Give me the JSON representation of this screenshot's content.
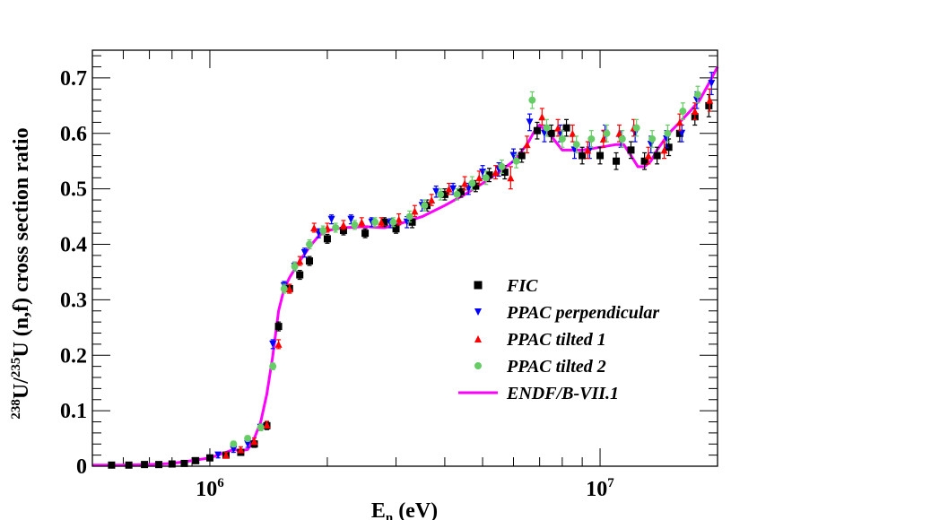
{
  "chart_data": {
    "type": "scatter",
    "title": "",
    "xlabel": "En (eV)",
    "xlabel_main": "E",
    "xlabel_sub": "n",
    "xlabel_rest": " (eV)",
    "ylabel": "238U/235U (n,f) cross section ratio",
    "ylabel_sup1": "238",
    "ylabel_mid": "U/",
    "ylabel_sup2": "235",
    "ylabel_rest": "U (n,f) cross section ratio",
    "xscale": "log",
    "xlim": [
      500000,
      20000000
    ],
    "ylim": [
      0,
      0.75
    ],
    "yticks": [
      {
        "value": 0,
        "label": "0"
      },
      {
        "value": 0.1,
        "label": "0.1"
      },
      {
        "value": 0.2,
        "label": "0.2"
      },
      {
        "value": 0.3,
        "label": "0.3"
      },
      {
        "value": 0.4,
        "label": "0.4"
      },
      {
        "value": 0.5,
        "label": "0.5"
      },
      {
        "value": 0.6,
        "label": "0.6"
      },
      {
        "value": 0.7,
        "label": "0.7"
      }
    ],
    "xticks": [
      {
        "value": 1000000,
        "base": "10",
        "exp": "6"
      },
      {
        "value": 10000000,
        "base": "10",
        "exp": "7"
      }
    ],
    "legend_position": "bottom-right",
    "series": [
      {
        "name": "FIC",
        "marker": "square",
        "color": "#000000",
        "x": [
          560000,
          620000,
          680000,
          740000,
          800000,
          860000,
          920000,
          1000000,
          1100000,
          1200000,
          1300000,
          1400000,
          1500000,
          1600000,
          1700000,
          1800000,
          2000000,
          2200000,
          2500000,
          2800000,
          3000000,
          3300000,
          3600000,
          4000000,
          4400000,
          4800000,
          5200000,
          5700000,
          6300000,
          6900000,
          7500000,
          8200000,
          9000000,
          10000000,
          11000000,
          12000000,
          13000000,
          14000000,
          15000000,
          16000000,
          17500000,
          19000000
        ],
        "y": [
          0.002,
          0.002,
          0.003,
          0.003,
          0.004,
          0.005,
          0.01,
          0.015,
          0.02,
          0.025,
          0.04,
          0.073,
          0.252,
          0.32,
          0.345,
          0.37,
          0.41,
          0.425,
          0.42,
          0.44,
          0.428,
          0.44,
          0.47,
          0.49,
          0.495,
          0.505,
          0.525,
          0.53,
          0.56,
          0.605,
          0.6,
          0.61,
          0.56,
          0.56,
          0.55,
          0.57,
          0.55,
          0.56,
          0.575,
          0.6,
          0.63,
          0.65
        ],
        "err": [
          0.003,
          0.003,
          0.003,
          0.003,
          0.003,
          0.003,
          0.004,
          0.004,
          0.005,
          0.005,
          0.006,
          0.007,
          0.008,
          0.008,
          0.008,
          0.008,
          0.008,
          0.008,
          0.008,
          0.008,
          0.008,
          0.01,
          0.01,
          0.01,
          0.01,
          0.01,
          0.012,
          0.012,
          0.012,
          0.015,
          0.015,
          0.015,
          0.015,
          0.015,
          0.015,
          0.015,
          0.015,
          0.015,
          0.015,
          0.015,
          0.015,
          0.02
        ]
      },
      {
        "name": "PPAC perpendicular",
        "marker": "triangle-down",
        "color": "#0000ff",
        "x": [
          1050000,
          1150000,
          1250000,
          1350000,
          1450000,
          1550000,
          1650000,
          1750000,
          1900000,
          2050000,
          2300000,
          2600000,
          2900000,
          3200000,
          3500000,
          3800000,
          4200000,
          4600000,
          5000000,
          5500000,
          6000000,
          6600000,
          7200000,
          7900000,
          8600000,
          9400000,
          10300000,
          11300000,
          12300000,
          13500000,
          14800000,
          16200000,
          17700000,
          19300000
        ],
        "y": [
          0.02,
          0.03,
          0.04,
          0.07,
          0.22,
          0.325,
          0.36,
          0.385,
          0.42,
          0.445,
          0.445,
          0.44,
          0.438,
          0.44,
          0.47,
          0.495,
          0.5,
          0.5,
          0.53,
          0.535,
          0.56,
          0.62,
          0.6,
          0.6,
          0.57,
          0.57,
          0.6,
          0.59,
          0.6,
          0.58,
          0.59,
          0.6,
          0.66,
          0.69
        ],
        "err": [
          0.005,
          0.005,
          0.006,
          0.006,
          0.008,
          0.008,
          0.008,
          0.008,
          0.008,
          0.008,
          0.008,
          0.008,
          0.008,
          0.01,
          0.01,
          0.01,
          0.01,
          0.01,
          0.012,
          0.012,
          0.012,
          0.015,
          0.015,
          0.015,
          0.015,
          0.015,
          0.015,
          0.015,
          0.015,
          0.015,
          0.015,
          0.015,
          0.015,
          0.02
        ]
      },
      {
        "name": "PPAC tilted 1",
        "marker": "triangle-up",
        "color": "#ff0000",
        "x": [
          1100000,
          1200000,
          1300000,
          1400000,
          1500000,
          1600000,
          1700000,
          1850000,
          2000000,
          2200000,
          2450000,
          2750000,
          3050000,
          3350000,
          3700000,
          4100000,
          4500000,
          4900000,
          5400000,
          5900000,
          6500000,
          7100000,
          7800000,
          8500000,
          9300000,
          10200000,
          11200000,
          12200000,
          13300000,
          14600000,
          16000000,
          17500000,
          19100000
        ],
        "y": [
          0.02,
          0.03,
          0.045,
          0.075,
          0.22,
          0.32,
          0.37,
          0.43,
          0.43,
          0.435,
          0.44,
          0.44,
          0.445,
          0.46,
          0.48,
          0.5,
          0.51,
          0.52,
          0.53,
          0.52,
          0.58,
          0.63,
          0.61,
          0.6,
          0.57,
          0.59,
          0.6,
          0.61,
          0.56,
          0.57,
          0.62,
          0.64,
          0.66
        ],
        "err": [
          0.005,
          0.005,
          0.006,
          0.006,
          0.008,
          0.008,
          0.008,
          0.008,
          0.008,
          0.008,
          0.008,
          0.008,
          0.01,
          0.01,
          0.01,
          0.01,
          0.012,
          0.012,
          0.012,
          0.02,
          0.015,
          0.015,
          0.015,
          0.015,
          0.015,
          0.015,
          0.015,
          0.015,
          0.015,
          0.015,
          0.015,
          0.015,
          0.02
        ]
      },
      {
        "name": "PPAC tilted 2",
        "marker": "circle",
        "color": "#66cc66",
        "x": [
          1150000,
          1250000,
          1350000,
          1450000,
          1550000,
          1650000,
          1800000,
          1950000,
          2100000,
          2350000,
          2650000,
          2950000,
          3250000,
          3550000,
          3900000,
          4300000,
          4700000,
          5100000,
          5600000,
          6100000,
          6700000,
          7300000,
          8000000,
          8700000,
          9500000,
          10400000,
          11400000,
          12400000,
          13600000,
          14900000,
          16300000,
          17800000
        ],
        "y": [
          0.04,
          0.05,
          0.07,
          0.18,
          0.32,
          0.36,
          0.4,
          0.425,
          0.43,
          0.435,
          0.44,
          0.44,
          0.45,
          0.47,
          0.49,
          0.49,
          0.51,
          0.52,
          0.54,
          0.55,
          0.66,
          0.61,
          0.59,
          0.58,
          0.59,
          0.6,
          0.59,
          0.61,
          0.59,
          0.6,
          0.64,
          0.67
        ],
        "err": [
          0.005,
          0.005,
          0.006,
          0.006,
          0.008,
          0.008,
          0.008,
          0.008,
          0.008,
          0.008,
          0.008,
          0.008,
          0.01,
          0.01,
          0.01,
          0.01,
          0.012,
          0.012,
          0.012,
          0.012,
          0.015,
          0.015,
          0.015,
          0.015,
          0.015,
          0.015,
          0.015,
          0.015,
          0.015,
          0.015,
          0.015,
          0.015
        ]
      },
      {
        "name": "ENDF/B-VII.1",
        "marker": "line",
        "color": "#ff00ff",
        "x": [
          500000,
          600000,
          700000,
          800000,
          900000,
          1000000,
          1100000,
          1150000,
          1200000,
          1250000,
          1300000,
          1350000,
          1400000,
          1450000,
          1500000,
          1550000,
          1600000,
          1700000,
          1800000,
          1900000,
          2000000,
          2200000,
          2500000,
          2800000,
          3000000,
          3500000,
          4000000,
          4500000,
          5000000,
          5500000,
          6000000,
          6500000,
          6800000,
          7000000,
          7500000,
          8000000,
          9000000,
          10000000,
          11000000,
          11500000,
          12000000,
          12500000,
          13000000,
          13500000,
          14000000,
          15000000,
          16000000,
          17000000,
          18000000,
          19000000,
          20000000
        ],
        "y": [
          0.002,
          0.002,
          0.003,
          0.005,
          0.01,
          0.015,
          0.025,
          0.03,
          0.028,
          0.03,
          0.05,
          0.08,
          0.13,
          0.2,
          0.28,
          0.32,
          0.34,
          0.37,
          0.395,
          0.415,
          0.425,
          0.43,
          0.432,
          0.43,
          0.435,
          0.45,
          0.47,
          0.49,
          0.51,
          0.53,
          0.55,
          0.58,
          0.605,
          0.615,
          0.595,
          0.57,
          0.57,
          0.575,
          0.58,
          0.58,
          0.56,
          0.54,
          0.54,
          0.55,
          0.57,
          0.6,
          0.62,
          0.64,
          0.66,
          0.69,
          0.72
        ]
      }
    ]
  }
}
